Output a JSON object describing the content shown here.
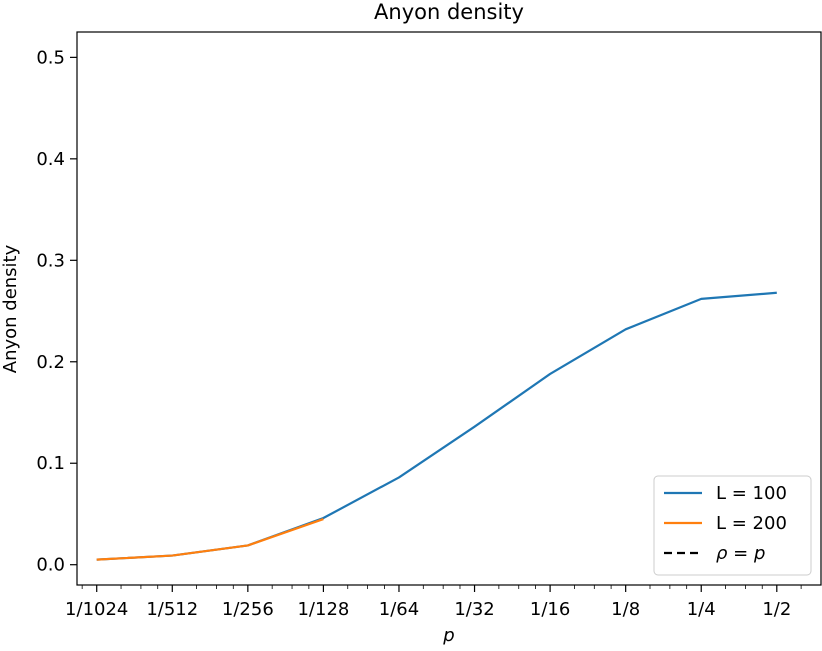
{
  "chart_data": {
    "type": "line",
    "title": "Anyon density",
    "xlabel": "p",
    "ylabel": "Anyon density",
    "xscale": "log2",
    "xlim": [
      0.000815,
      0.75
    ],
    "ylim": [
      -0.02,
      0.525
    ],
    "x_ticks": [
      0.0009765625,
      0.001953125,
      0.00390625,
      0.0078125,
      0.015625,
      0.03125,
      0.0625,
      0.125,
      0.25,
      0.5
    ],
    "x_tick_labels": [
      "1/1024",
      "1/512",
      "1/256",
      "1/128",
      "1/64",
      "1/32",
      "1/16",
      "1/8",
      "1/4",
      "1/2"
    ],
    "y_ticks": [
      0.0,
      0.1,
      0.2,
      0.3,
      0.4,
      0.5
    ],
    "y_tick_labels": [
      "0.0",
      "0.1",
      "0.2",
      "0.3",
      "0.4",
      "0.5"
    ],
    "grid": false,
    "legend_position": "lower-right",
    "series": [
      {
        "name": "L = 100",
        "color": "#1f77b4",
        "style": "solid",
        "x": [
          0.0009765625,
          0.001953125,
          0.00390625,
          0.0078125,
          0.015625,
          0.03125,
          0.0625,
          0.125,
          0.25,
          0.5
        ],
        "y": [
          0.005,
          0.009,
          0.019,
          0.046,
          0.086,
          0.136,
          0.188,
          0.232,
          0.262,
          0.268
        ]
      },
      {
        "name": "L = 200",
        "color": "#ff7f0e",
        "style": "solid",
        "x": [
          0.0009765625,
          0.001953125,
          0.00390625,
          0.0078125
        ],
        "y": [
          0.005,
          0.009,
          0.019,
          0.045
        ]
      },
      {
        "name": "ρ = p",
        "color": "#000000",
        "style": "dashed",
        "x": [],
        "y": []
      }
    ]
  }
}
